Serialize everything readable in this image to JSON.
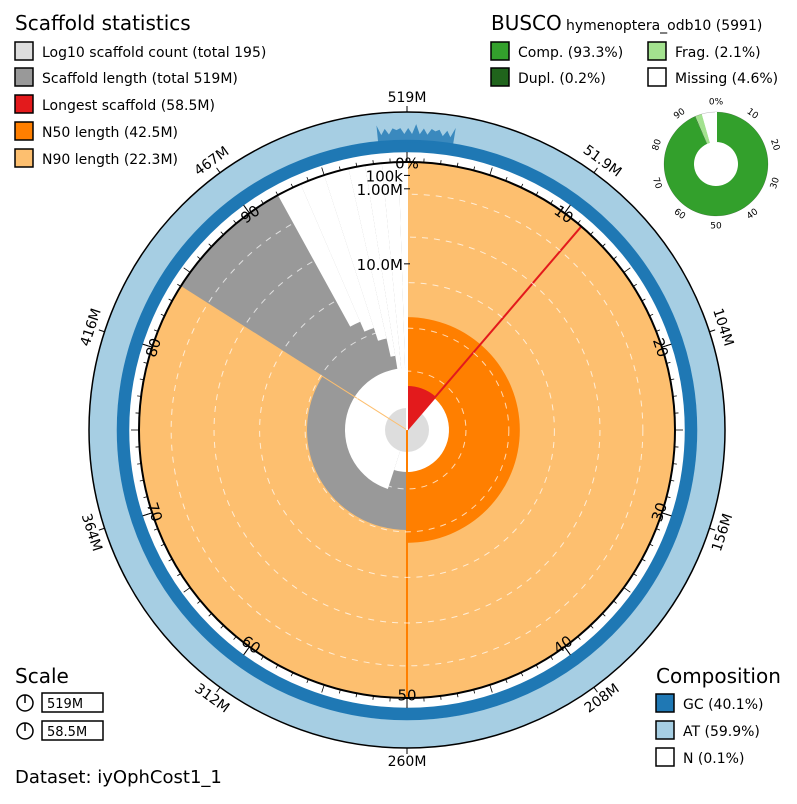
{
  "dataset": "Dataset: iyOphCost1_1",
  "scaffold_panel": {
    "title": "Scaffold statistics",
    "legend": [
      {
        "label": "Log10 scaffold count (total 195)",
        "color": "#dddddd"
      },
      {
        "label": "Scaffold length (total 519M)",
        "color": "#999999"
      },
      {
        "label": "Longest scaffold (58.5M)",
        "color": "#e31a1c"
      },
      {
        "label": "N50 length (42.5M)",
        "color": "#ff7f00"
      },
      {
        "label": "N90 length (22.3M)",
        "color": "#fdbf6f"
      }
    ]
  },
  "busco_panel": {
    "title": "BUSCO",
    "lineage": "hymenoptera_odb10 (5991)",
    "legend": [
      {
        "label": "Comp. (93.3%)",
        "color": "#33a02c"
      },
      {
        "label": "Frag. (2.1%)",
        "color": "#a3e28f"
      },
      {
        "label": "Dupl. (0.2%)",
        "color": "#20641c"
      },
      {
        "label": "Missing (4.6%)",
        "color": "#ffffff"
      }
    ],
    "ticks": [
      "0%",
      "10",
      "20",
      "30",
      "40",
      "50",
      "60",
      "70",
      "80",
      "90"
    ]
  },
  "scale_panel": {
    "title": "Scale",
    "items": [
      "519M",
      "58.5M"
    ]
  },
  "composition_panel": {
    "title": "Composition",
    "legend": [
      {
        "label": "GC (40.1%)",
        "color": "#1f78b4"
      },
      {
        "label": "AT (59.9%)",
        "color": "#a6cee3"
      },
      {
        "label": "N (0.1%)",
        "color": "#ffffff"
      }
    ]
  },
  "chart_data": {
    "type": "snail",
    "total_length": 519,
    "unit": "M",
    "scaffold_count": 195,
    "longest_scaffold": 58.5,
    "n50": 42.5,
    "n90": 22.3,
    "gc_percent": 40.1,
    "at_percent": 59.9,
    "n_percent": 0.1,
    "outer_tick_labels": [
      "519M",
      "51.9M",
      "104M",
      "156M",
      "208M",
      "260M",
      "312M",
      "364M",
      "416M",
      "467M"
    ],
    "percent_tick_labels": [
      "0%",
      "10",
      "20",
      "30",
      "40",
      "50",
      "60",
      "70",
      "80",
      "90"
    ],
    "radial_scale_labels": [
      "100k",
      "1.00M",
      "10.0M"
    ],
    "busco": {
      "complete": 93.3,
      "duplicated": 0.2,
      "fragmented": 2.1,
      "missing": 4.6
    }
  }
}
